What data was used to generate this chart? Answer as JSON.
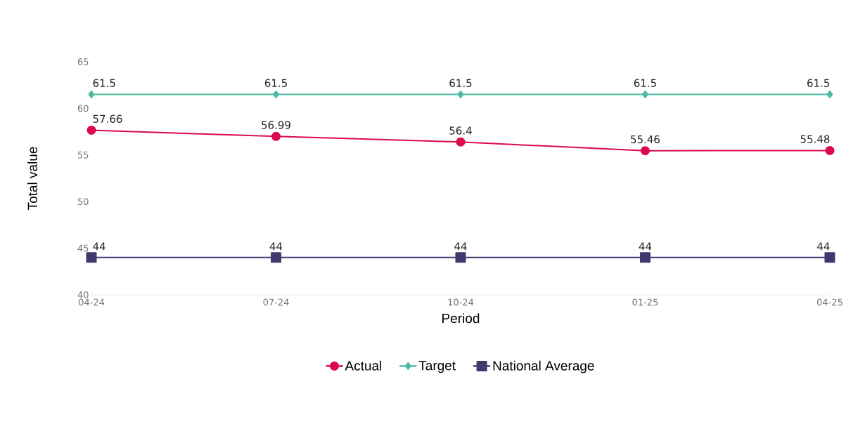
{
  "chart_data": {
    "type": "line",
    "xlabel": "Period",
    "ylabel": "Total value",
    "categories": [
      "04-24",
      "07-24",
      "10-24",
      "01-25",
      "04-25"
    ],
    "series": [
      {
        "name": "Actual",
        "color": "#dc0a4b",
        "marker": "circle",
        "values": [
          57.66,
          56.99,
          56.4,
          55.46,
          55.48
        ]
      },
      {
        "name": "Target",
        "color": "#4dbaa2",
        "marker": "diamond",
        "values": [
          61.5,
          61.5,
          61.5,
          61.5,
          61.5
        ]
      },
      {
        "name": "National Average",
        "color": "#3f3a6e",
        "marker": "square",
        "values": [
          44,
          44,
          44,
          44,
          44
        ]
      }
    ],
    "ylim": [
      40,
      65
    ],
    "yticks": [
      40,
      45,
      50,
      55,
      60,
      65
    ],
    "grid": false,
    "legend": "bottom",
    "data_labels": true,
    "line_style": "solid"
  }
}
